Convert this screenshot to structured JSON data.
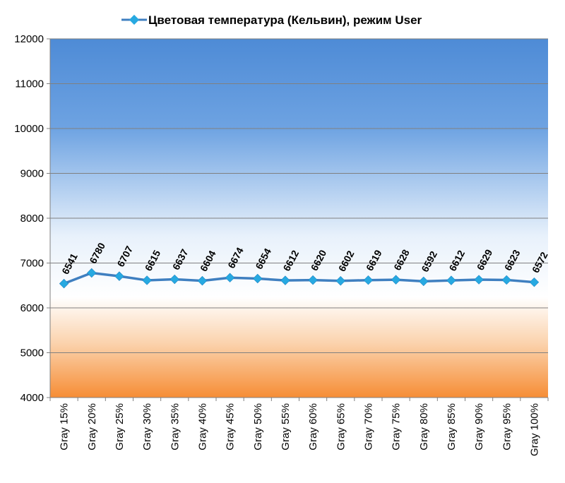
{
  "chart_data": {
    "type": "line",
    "title": "",
    "xlabel": "",
    "ylabel": "",
    "ylim": [
      4000,
      12000
    ],
    "ytick_step": 1000,
    "grid": true,
    "legend_position": "top",
    "categories": [
      "Gray 15%",
      "Gray 20%",
      "Gray 25%",
      "Gray 30%",
      "Gray 35%",
      "Gray 40%",
      "Gray 45%",
      "Gray 50%",
      "Gray 55%",
      "Gray 60%",
      "Gray 65%",
      "Gray 70%",
      "Gray 75%",
      "Gray 80%",
      "Gray 85%",
      "Gray 90%",
      "Gray 95%",
      "Gray 100%"
    ],
    "series": [
      {
        "name": "Цветовая температура (Кельвин), режим User",
        "values": [
          6541,
          6780,
          6707,
          6615,
          6637,
          6604,
          6674,
          6654,
          6612,
          6620,
          6602,
          6619,
          6628,
          6592,
          6612,
          6629,
          6623,
          6572
        ],
        "color": "#3f7fc0",
        "marker_color": "#27a9e1"
      }
    ],
    "background_gradient": [
      "#4f8fd8",
      "#ffffff",
      "#f7923a"
    ]
  }
}
